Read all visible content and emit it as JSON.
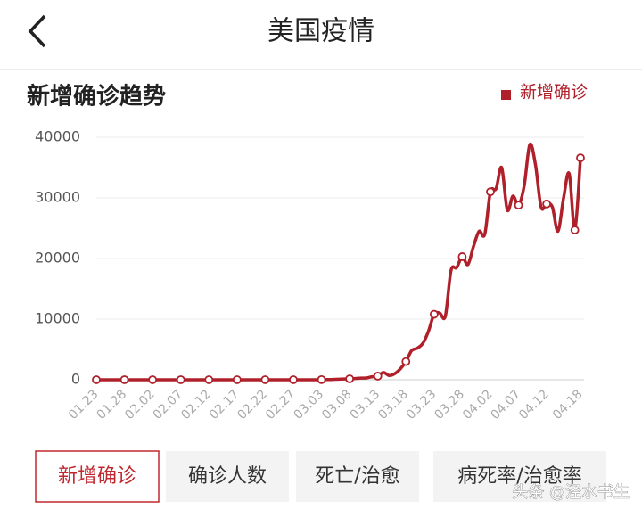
{
  "header": {
    "title": "美国疫情"
  },
  "chart_data": {
    "type": "line",
    "title": "新增确诊趋势",
    "categories": [
      "01.23",
      null,
      null,
      null,
      null,
      "01.28",
      null,
      null,
      null,
      null,
      "02.02",
      null,
      null,
      null,
      null,
      "02.07",
      null,
      null,
      null,
      null,
      "02.12",
      null,
      null,
      null,
      null,
      "02.17",
      null,
      null,
      null,
      null,
      "02.22",
      null,
      null,
      null,
      null,
      "02.27",
      null,
      null,
      null,
      null,
      "03.03",
      null,
      null,
      null,
      null,
      "03.08",
      null,
      null,
      null,
      null,
      "03.13",
      null,
      null,
      null,
      null,
      "03.18",
      null,
      null,
      null,
      null,
      "03.23",
      null,
      null,
      null,
      null,
      "03.28",
      null,
      null,
      null,
      null,
      "04.02",
      null,
      null,
      null,
      null,
      "04.07",
      null,
      null,
      null,
      null,
      "04.12",
      null,
      null,
      null,
      null,
      null,
      "04.18"
    ],
    "series": [
      {
        "name": "新增确诊",
        "color": "#b0202a",
        "values": [
          0,
          0,
          0,
          0,
          0,
          0,
          0,
          0,
          0,
          0,
          0,
          0,
          0,
          0,
          0,
          0,
          0,
          0,
          0,
          0,
          0,
          0,
          0,
          0,
          0,
          0,
          0,
          0,
          0,
          0,
          0,
          0,
          0,
          0,
          0,
          0,
          0,
          0,
          0,
          0,
          20,
          30,
          60,
          100,
          120,
          150,
          200,
          280,
          300,
          500,
          600,
          1200,
          700,
          1000,
          1800,
          3000,
          4800,
          5200,
          6000,
          8000,
          10800,
          11000,
          10500,
          18000,
          18500,
          20300,
          19000,
          22000,
          24500,
          24000,
          31000,
          31500,
          35000,
          28000,
          30300,
          28800,
          32000,
          38800,
          35500,
          28500,
          29000,
          28500,
          24500,
          30000,
          34000,
          24700,
          36600
        ]
      }
    ],
    "ylim": [
      0,
      40000
    ],
    "yticks": [
      0,
      10000,
      20000,
      30000,
      40000
    ],
    "grid": true,
    "legend": "top-right"
  },
  "tabs": [
    "新增确诊",
    "确诊人数",
    "死亡/治愈",
    "病死率/治愈率"
  ],
  "watermark": "头条 @泾水书生"
}
